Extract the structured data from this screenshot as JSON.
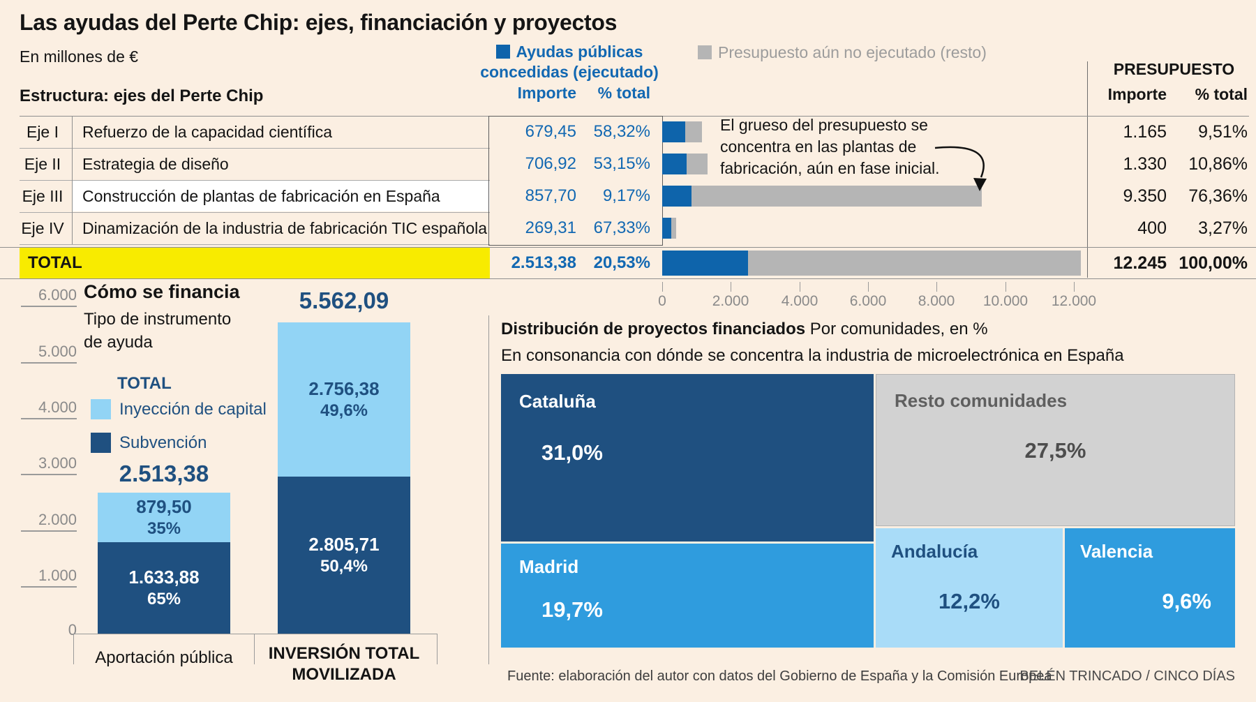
{
  "title": "Las ayudas del Perte Chip: ejes, financiación y proyectos",
  "units_note": "En millones de €",
  "legend": {
    "executed_label": "Ayudas públicas concedidas (ejecutado)",
    "remaining_label": "Presupuesto aún no ejecutado (resto)"
  },
  "table": {
    "section_title": "Estructura: ejes del Perte Chip",
    "col_importe": "Importe",
    "col_pct": "% total",
    "presupuesto_title": "PRESUPUESTO",
    "rows": [
      {
        "eje": "Eje I",
        "label": "Refuerzo de la capacidad científica",
        "importe": "679,45",
        "pct": "58,32%",
        "presupuesto": "1.165",
        "presupuesto_pct": "9,51%"
      },
      {
        "eje": "Eje II",
        "label": "Estrategia de diseño",
        "importe": "706,92",
        "pct": "53,15%",
        "presupuesto": "1.330",
        "presupuesto_pct": "10,86%"
      },
      {
        "eje": "Eje III",
        "label": "Construcción de plantas de fabricación en España",
        "importe": "857,70",
        "pct": "9,17%",
        "presupuesto": "9.350",
        "presupuesto_pct": "76,36%"
      },
      {
        "eje": "Eje IV",
        "label": "Dinamización de la industria de fabricación TIC española",
        "importe": "269,31",
        "pct": "67,33%",
        "presupuesto": "400",
        "presupuesto_pct": "3,27%"
      }
    ],
    "total": {
      "label": "TOTAL",
      "importe": "2.513,38",
      "pct": "20,53%",
      "presupuesto": "12.245",
      "presupuesto_pct": "100,00%"
    }
  },
  "annotation": "El grueso del presupuesto se concentra en las plantas de fabricación, aún en fase inicial.",
  "bar_axis": [
    "0",
    "2.000",
    "4.000",
    "6.000",
    "8.000",
    "10.000",
    "12.000"
  ],
  "financing": {
    "title": "Cómo se financia",
    "subtitle": "Tipo de instrumento de ayuda",
    "legend_total": "TOTAL",
    "legend_capital": "Inyección de capital",
    "legend_subvencion": "Subvención",
    "y_axis": [
      "6.000",
      "5.000",
      "4.000",
      "3.000",
      "2.000",
      "1.000",
      "0"
    ],
    "bars": [
      {
        "category": "Aportación pública",
        "total": "2.513,38",
        "capital_value": "879,50",
        "capital_pct": "35%",
        "subvencion_value": "1.633,88",
        "subvencion_pct": "65%"
      },
      {
        "category": "INVERSIÓN TOTAL MOVILIZADA",
        "total": "5.562,09",
        "capital_value": "2.756,38",
        "capital_pct": "49,6%",
        "subvencion_value": "2.805,71",
        "subvencion_pct": "50,4%"
      }
    ]
  },
  "treemap": {
    "title_bold": "Distribución de proyectos financiados",
    "title_rest": "Por comunidades, en %",
    "subtitle": "En consonancia con dónde se concentra la industria de microelectrónica en España",
    "cells": [
      {
        "name": "Cataluña",
        "pct": "31,0%"
      },
      {
        "name": "Resto comunidades",
        "pct": "27,5%"
      },
      {
        "name": "Madrid",
        "pct": "19,7%"
      },
      {
        "name": "Andalucía",
        "pct": "12,2%"
      },
      {
        "name": "Valencia",
        "pct": "9,6%"
      }
    ]
  },
  "footer": {
    "source": "Fuente: elaboración del autor con datos del Gobierno de España y la Comisión Europea",
    "credit": "BELÉN TRINCADO / CINCO DÍAS"
  },
  "colors": {
    "background": "#FBEFE2",
    "executed_blue": "#0E64AB",
    "remaining_gray": "#B5B5B5",
    "total_yellow": "#F8EB00",
    "navy": "#1F5080",
    "light_blue": "#92D4F5",
    "medium_blue": "#2F9CDE",
    "andalucia_blue": "#A9DCF8",
    "resto_gray": "#D2D2D2",
    "text_blue": "#1268B2"
  },
  "chart_data": [
    {
      "type": "bar",
      "orientation": "horizontal",
      "title": "Estructura: ejes del Perte Chip",
      "units": "millones de €",
      "categories": [
        "Eje I Refuerzo de la capacidad científica",
        "Eje II Estrategia de diseño",
        "Eje III Construcción de plantas de fabricación en España",
        "Eje IV Dinamización de la industria de fabricación TIC española",
        "TOTAL"
      ],
      "series": [
        {
          "name": "Ayudas públicas concedidas (ejecutado)",
          "values": [
            679.45,
            706.92,
            857.7,
            269.31,
            2513.38
          ]
        },
        {
          "name": "Presupuesto aún no ejecutado (resto)",
          "values": [
            485.55,
            623.08,
            8492.3,
            130.69,
            9731.62
          ]
        }
      ],
      "budget_total": [
        1165,
        1330,
        9350,
        400,
        12245
      ],
      "executed_pct_of_budget": [
        58.32,
        53.15,
        9.17,
        67.33,
        20.53
      ],
      "budget_pct_of_total": [
        9.51,
        10.86,
        76.36,
        3.27,
        100.0
      ],
      "xlim": [
        0,
        12245
      ],
      "x_ticks": [
        0,
        2000,
        4000,
        6000,
        8000,
        10000,
        12000
      ]
    },
    {
      "type": "bar",
      "subtype": "stacked_column",
      "title": "Cómo se financia",
      "categories": [
        "Aportación pública",
        "Inversión total movilizada"
      ],
      "series": [
        {
          "name": "Subvención",
          "values": [
            1633.88,
            2805.71
          ],
          "pcts": [
            65,
            50.4
          ]
        },
        {
          "name": "Inyección de capital",
          "values": [
            879.5,
            2756.38
          ],
          "pcts": [
            35,
            49.6
          ]
        }
      ],
      "totals": [
        2513.38,
        5562.09
      ],
      "ylim": [
        0,
        6000
      ],
      "y_ticks": [
        0,
        1000,
        2000,
        3000,
        4000,
        5000,
        6000
      ]
    },
    {
      "type": "treemap",
      "title": "Distribución de proyectos financiados",
      "units": "% de proyectos por comunidades",
      "values": [
        {
          "name": "Cataluña",
          "pct": 31.0
        },
        {
          "name": "Resto comunidades",
          "pct": 27.5
        },
        {
          "name": "Madrid",
          "pct": 19.7
        },
        {
          "name": "Andalucía",
          "pct": 12.2
        },
        {
          "name": "Valencia",
          "pct": 9.6
        }
      ]
    }
  ]
}
